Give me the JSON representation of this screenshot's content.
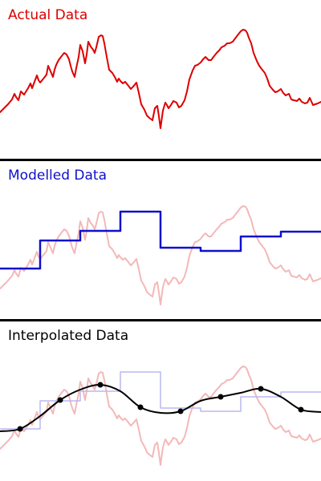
{
  "panels": [
    {
      "title": "Actual Data"
    },
    {
      "title": "Modelled Data"
    },
    {
      "title": "Interpolated Data"
    }
  ],
  "colors": {
    "actual": "#dd0000",
    "actual_faded": "#f4b8b8",
    "modelled": "#1010cc",
    "modelled_faded": "#b8b8f0",
    "interpolated": "#000000"
  },
  "chart_data": {
    "type": "line",
    "actual_series": {
      "x": [
        0,
        5,
        10,
        15,
        18,
        20,
        23,
        26,
        30,
        35,
        38,
        40,
        43,
        46,
        48,
        50,
        55,
        58,
        60,
        63,
        66,
        68,
        70,
        73,
        76,
        80,
        83,
        86,
        88,
        90,
        93,
        95,
        98,
        100,
        103,
        106,
        108,
        110,
        113,
        116,
        118,
        120,
        123,
        126,
        128,
        130,
        133,
        136,
        140,
        143,
        146,
        148,
        150,
        153,
        156,
        160,
        163,
        166,
        170,
        173,
        176,
        180,
        183,
        186,
        190,
        193,
        196,
        198,
        200,
        203,
        206,
        208,
        210,
        213,
        216,
        220,
        223,
        226,
        230,
        233,
        236,
        240,
        243,
        246,
        250,
        253,
        256,
        260,
        263,
        266,
        270,
        273,
        276,
        280,
        283,
        286,
        290,
        293,
        296,
        300,
        303,
        306,
        308,
        310,
        313,
        316,
        320,
        323,
        326,
        330,
        333,
        336,
        340,
        343,
        346,
        350,
        353,
        356,
        360,
        363,
        366,
        370,
        373,
        376,
        380,
        383,
        386,
        390,
        393,
        396,
        400
      ],
      "y": [
        2,
        2.5,
        3,
        3.6,
        4.3,
        3.9,
        3.5,
        4.6,
        4.2,
        5,
        5.6,
        5,
        5.8,
        6.6,
        6,
        5.7,
        6.3,
        6.7,
        7.8,
        7.1,
        6.4,
        7.3,
        7.9,
        8.5,
        8.9,
        9.4,
        9.2,
        8.6,
        7.8,
        7.1,
        6.4,
        7.5,
        8.9,
        10.4,
        9.6,
        8.1,
        9.2,
        10.8,
        10.2,
        9.8,
        9.4,
        10.1,
        11.4,
        11.6,
        11.5,
        10.6,
        8.9,
        7.3,
        6.9,
        6.4,
        5.8,
        6.2,
        5.9,
        5.6,
        5.8,
        5.3,
        4.9,
        5.2,
        5.7,
        4.4,
        3,
        2.3,
        1.6,
        1.3,
        1,
        2.5,
        2.8,
        1.5,
        0,
        2.2,
        3.2,
        2.9,
        2.5,
        2.9,
        3.4,
        3.2,
        2.6,
        2.8,
        3.5,
        4.6,
        6.1,
        7.2,
        7.8,
        7.9,
        8.2,
        8.6,
        8.9,
        8.5,
        8.5,
        8.9,
        9.4,
        9.7,
        10.1,
        10.3,
        10.6,
        10.6,
        10.8,
        11.2,
        11.6,
        12.1,
        12.3,
        12.2,
        11.9,
        11.3,
        10.6,
        9.4,
        8.4,
        7.8,
        7.4,
        6.9,
        6.2,
        5.3,
        4.8,
        4.5,
        4.6,
        4.9,
        4.4,
        4.1,
        4.3,
        3.6,
        3.5,
        3.4,
        3.7,
        3.3,
        3.1,
        3.2,
        3.8,
        2.9,
        3,
        3.1,
        3.3
      ]
    },
    "modelled_series": {
      "x": [
        0,
        50,
        50,
        100,
        100,
        150,
        150,
        200,
        200,
        250,
        250,
        300,
        300,
        350,
        350,
        400
      ],
      "y": [
        2.8,
        2.8,
        6.3,
        6.3,
        7.5,
        7.5,
        9.9,
        9.9,
        5.4,
        5.4,
        5,
        5,
        6.8,
        6.8,
        7.4,
        7.4
      ]
    },
    "interpolated_series": {
      "x": [
        0,
        25,
        50,
        75,
        100,
        125,
        150,
        175,
        200,
        225,
        250,
        275,
        300,
        325,
        350,
        375,
        400
      ],
      "y": [
        2.5,
        2.8,
        4.4,
        6.4,
        7.7,
        8.3,
        7.5,
        5.5,
        4.8,
        5,
        6.3,
        6.8,
        7.3,
        7.8,
        6.8,
        5.2,
        4.9
      ]
    },
    "interpolated_points": {
      "x": [
        25,
        75,
        125,
        175,
        225,
        275,
        325,
        375
      ],
      "y": [
        2.8,
        6.4,
        8.3,
        5.5,
        5,
        6.8,
        7.8,
        5.2
      ]
    }
  }
}
